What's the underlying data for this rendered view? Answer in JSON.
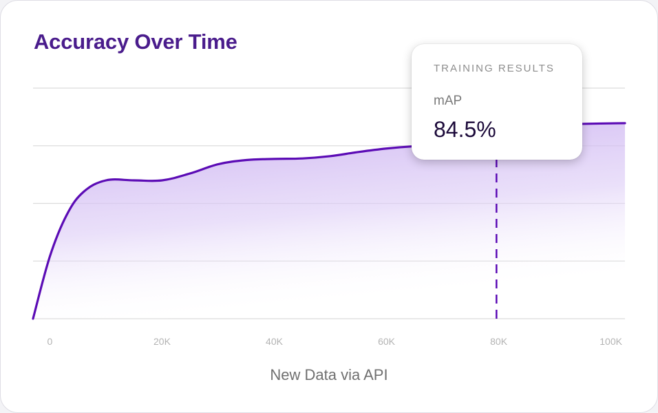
{
  "chart_data": {
    "type": "area",
    "title": "Accuracy Over Time",
    "xlabel": "New Data via API",
    "ylabel": "",
    "x_tick_labels": [
      "0",
      "20K",
      "40K",
      "60K",
      "80K",
      "100K"
    ],
    "x_ticks": [
      0,
      20000,
      40000,
      60000,
      80000,
      100000
    ],
    "xlim": [
      -3000,
      102500
    ],
    "ylim": [
      0,
      100
    ],
    "grid": true,
    "colors": {
      "line": "#5b0bb5",
      "fill_top": "#c9aef0",
      "grid": "#dcdcdc",
      "marker": "#5b0bb5"
    },
    "series": [
      {
        "x": [
          -3000,
          0,
          3000,
          6000,
          10000,
          15000,
          20000,
          25000,
          30000,
          35000,
          40000,
          45000,
          50000,
          55000,
          60000,
          65000,
          70000,
          80000,
          90000,
          95000,
          102500
        ],
        "y": [
          0,
          27,
          45,
          55,
          60,
          60,
          60,
          63,
          67,
          68.8,
          69.3,
          69.5,
          70.5,
          72.3,
          73.8,
          74.8,
          75.3,
          80,
          84,
          84.5,
          84.8
        ]
      }
    ],
    "marker_x": 79600
  },
  "tooltip": {
    "header": "TRAINING RESULTS",
    "metric": "mAP",
    "value": "84.5%"
  }
}
